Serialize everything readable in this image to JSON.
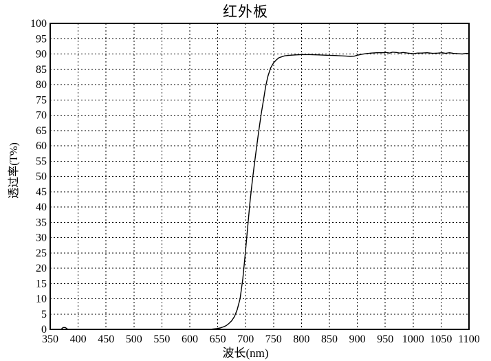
{
  "colors": {
    "background": "#ffffff",
    "foreground": "#000000"
  },
  "chart_data": {
    "type": "line",
    "title": "红外板",
    "xlabel": "波长(nm)",
    "ylabel": "透过率(T%)",
    "xlim": [
      350,
      1100
    ],
    "ylim": [
      0,
      100
    ],
    "grid": "dashed-both-axes",
    "legend": "none",
    "x_ticks": [
      350,
      400,
      450,
      500,
      550,
      600,
      650,
      700,
      750,
      800,
      850,
      900,
      950,
      1000,
      1050,
      1100
    ],
    "y_ticks": [
      0,
      5,
      10,
      15,
      20,
      25,
      30,
      35,
      40,
      45,
      50,
      55,
      60,
      65,
      70,
      75,
      80,
      85,
      90,
      95,
      100
    ],
    "series": [
      {
        "name": "transmittance",
        "points": [
          [
            350,
            0
          ],
          [
            360,
            0
          ],
          [
            370,
            0.1
          ],
          [
            373,
            0.6
          ],
          [
            377,
            0.6
          ],
          [
            381,
            0.1
          ],
          [
            400,
            0
          ],
          [
            425,
            0
          ],
          [
            450,
            0
          ],
          [
            475,
            0
          ],
          [
            500,
            0
          ],
          [
            525,
            0
          ],
          [
            550,
            0
          ],
          [
            575,
            0
          ],
          [
            600,
            0
          ],
          [
            615,
            0
          ],
          [
            630,
            0.05
          ],
          [
            640,
            0.1
          ],
          [
            648,
            0.25
          ],
          [
            655,
            0.5
          ],
          [
            660,
            0.8
          ],
          [
            665,
            1.2
          ],
          [
            670,
            1.9
          ],
          [
            675,
            2.8
          ],
          [
            680,
            4.2
          ],
          [
            685,
            6.5
          ],
          [
            690,
            10
          ],
          [
            695,
            16.5
          ],
          [
            700,
            26
          ],
          [
            704,
            34
          ],
          [
            708,
            42
          ],
          [
            712,
            48.5
          ],
          [
            716,
            54.5
          ],
          [
            720,
            60
          ],
          [
            724,
            65.5
          ],
          [
            728,
            70.5
          ],
          [
            732,
            75
          ],
          [
            736,
            79.5
          ],
          [
            740,
            82.8
          ],
          [
            745,
            85.5
          ],
          [
            750,
            87.1
          ],
          [
            755,
            88.1
          ],
          [
            760,
            88.8
          ],
          [
            765,
            89.1
          ],
          [
            770,
            89.4
          ],
          [
            775,
            89.5
          ],
          [
            780,
            89.6
          ],
          [
            790,
            89.7
          ],
          [
            800,
            89.8
          ],
          [
            815,
            89.8
          ],
          [
            830,
            89.7
          ],
          [
            845,
            89.6
          ],
          [
            860,
            89.5
          ],
          [
            870,
            89.4
          ],
          [
            880,
            89.3
          ],
          [
            888,
            89.2
          ],
          [
            895,
            89.3
          ],
          [
            900,
            89.6
          ],
          [
            908,
            89.9
          ],
          [
            915,
            90.1
          ],
          [
            925,
            90.3
          ],
          [
            935,
            90.4
          ],
          [
            945,
            90.4
          ],
          [
            952,
            90.5
          ],
          [
            958,
            90.3
          ],
          [
            963,
            90.6
          ],
          [
            970,
            90.5
          ],
          [
            976,
            90.3
          ],
          [
            982,
            90.5
          ],
          [
            990,
            90.3
          ],
          [
            1000,
            90.1
          ],
          [
            1008,
            90.3
          ],
          [
            1015,
            90.3
          ],
          [
            1025,
            90.4
          ],
          [
            1035,
            90.2
          ],
          [
            1045,
            90.3
          ],
          [
            1052,
            90.4
          ],
          [
            1058,
            90.2
          ],
          [
            1065,
            90.4
          ],
          [
            1072,
            90.2
          ],
          [
            1080,
            90.1
          ],
          [
            1088,
            90.0
          ],
          [
            1095,
            90.2
          ],
          [
            1100,
            90.1
          ]
        ]
      }
    ]
  }
}
